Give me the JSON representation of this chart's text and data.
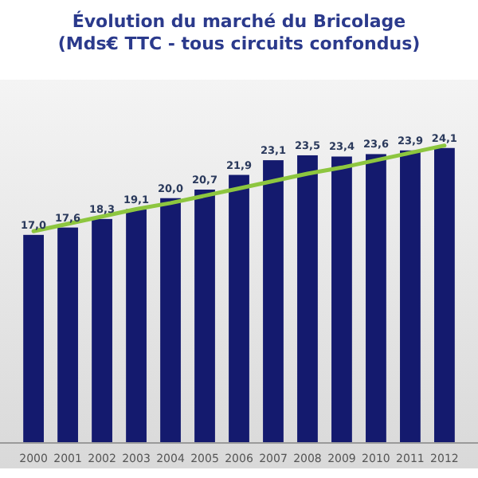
{
  "chart_data": {
    "type": "bar",
    "title": "Évolution du marché du Bricolage",
    "subtitle": "(Mds€ TTC - tous circuits confondus)",
    "categories": [
      "2000",
      "2001",
      "2002",
      "2003",
      "2004",
      "2005",
      "2006",
      "2007",
      "2008",
      "2009",
      "2010",
      "2011",
      "2012"
    ],
    "series": [
      {
        "color": "#141a6e",
        "values": [
          17.0,
          17.6,
          18.3,
          19.1,
          20.0,
          20.7,
          21.9,
          23.1,
          23.5,
          23.4,
          23.6,
          23.9,
          24.1
        ],
        "value_labels": [
          "17,0",
          "17,6",
          "18,3",
          "19,1",
          "20,0",
          "20,7",
          "21,9",
          "23,1",
          "23,5",
          "23,4",
          "23,6",
          "23,9",
          "24,1"
        ]
      },
      {
        "type": "line",
        "color": "#8dc63f",
        "values": [
          17.3,
          17.9,
          18.5,
          19.1,
          19.6,
          20.2,
          20.8,
          21.4,
          22.0,
          22.5,
          23.1,
          23.7,
          24.3
        ]
      }
    ]
  }
}
